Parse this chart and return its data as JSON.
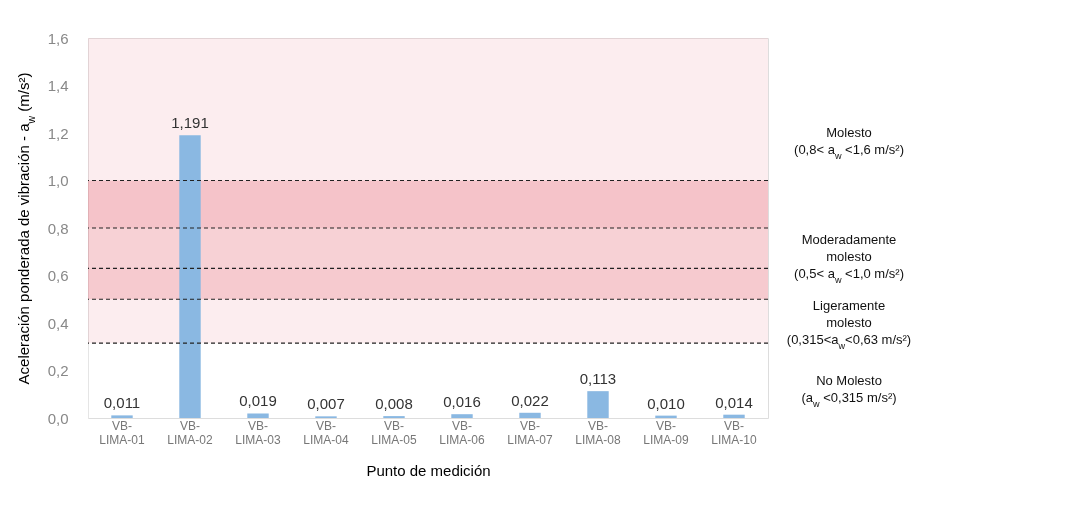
{
  "chart_data": {
    "type": "bar",
    "xlabel": "Punto de medición",
    "ylabel": "Aceleración ponderada de vibración - a$_{w}$ (m/s²)",
    "categories": [
      "VB-LIMA-01",
      "VB-LIMA-02",
      "VB-LIMA-03",
      "VB-LIMA-04",
      "VB-LIMA-05",
      "VB-LIMA-06",
      "VB-LIMA-07",
      "VB-LIMA-08",
      "VB-LIMA-09",
      "VB-LIMA-10"
    ],
    "values": [
      0.011,
      1.191,
      0.019,
      0.007,
      0.008,
      0.016,
      0.022,
      0.113,
      0.01,
      0.014
    ],
    "value_labels": [
      "0,011",
      "1,191",
      "0,019",
      "0,007",
      "0,008",
      "0,016",
      "0,022",
      "0,113",
      "0,010",
      "0,014"
    ],
    "color": "#8ab8e2",
    "ylim": [
      0,
      1.6
    ],
    "yticks": [
      {
        "value": 0,
        "label": "0,0"
      },
      {
        "value": 0.2,
        "label": "0,2"
      },
      {
        "value": 0.4,
        "label": "0,4"
      },
      {
        "value": 0.6,
        "label": "0,6"
      },
      {
        "value": 0.8,
        "label": "0,8"
      },
      {
        "value": 1.0,
        "label": "1,0"
      },
      {
        "value": 1.2,
        "label": "1,2"
      },
      {
        "value": 1.4,
        "label": "1,4"
      },
      {
        "value": 1.6,
        "label": "1,6"
      }
    ],
    "ref_lines": [
      {
        "axis": "y",
        "value": 1.0,
        "line_style": "dashed",
        "color": "#222222"
      },
      {
        "axis": "y",
        "value": 0.8,
        "line_style": "dashed",
        "color": "#222222"
      },
      {
        "axis": "y",
        "value": 0.63,
        "line_style": "dashed",
        "color": "#222222"
      },
      {
        "axis": "y",
        "value": 0.5,
        "line_style": "dashed",
        "color": "#222222"
      },
      {
        "axis": "y",
        "value": 0.315,
        "line_style": "dashed",
        "color": "#222222"
      }
    ],
    "bands": [
      {
        "axis": "y",
        "from": 0.8,
        "to": 1.6,
        "label": "Molesto\n(0,8< a$_{w}$ <1,6 m/s²)",
        "color": "#f2b8c0"
      },
      {
        "axis": "y",
        "from": 0.5,
        "to": 1.0,
        "label": "Moderadamente\nmolesto\n(0,5< a$_{w}$ <1,0 m/s²)",
        "color": "#e04858"
      },
      {
        "axis": "y",
        "from": 0.315,
        "to": 0.63,
        "label": "Ligeramente\nmolesto\n(0,315<a$_{w}$<0,63 m/s²)",
        "color": "#f2b8c0"
      },
      {
        "axis": "y",
        "from": 0,
        "to": 0.315,
        "label": "No Molesto\n(a$_{w}$ <0,315 m/s²)",
        "color": "#ffffff"
      }
    ]
  }
}
